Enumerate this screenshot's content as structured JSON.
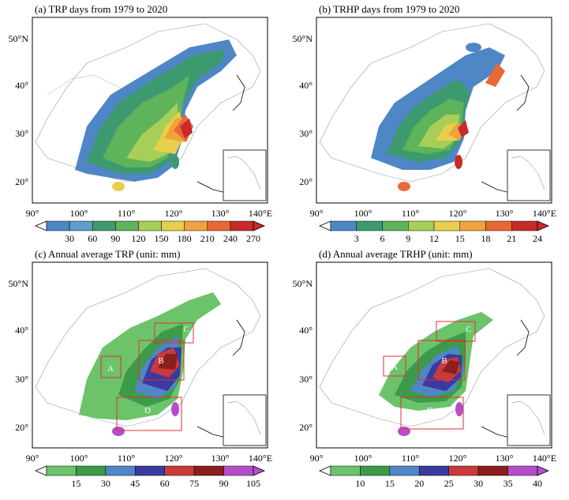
{
  "panels": [
    {
      "title": "(a) TRP days from 1979 to 2020",
      "colorbar": {
        "ticks": [
          "30",
          "60",
          "90",
          "120",
          "150",
          "180",
          "210",
          "240",
          "270"
        ],
        "unit": ""
      },
      "colors": [
        "#4f86c6",
        "#5d9fc9",
        "#3d9a6e",
        "#5fb35a",
        "#a7cf57",
        "#e8cf4a",
        "#f0a33d",
        "#e86935",
        "#c92a2a"
      ],
      "boxes": false
    },
    {
      "title": "(b) TRHP days from 1979 to 2020",
      "colorbar": {
        "ticks": [
          "3",
          "6",
          "9",
          "12",
          "15",
          "18",
          "21",
          "24"
        ],
        "unit": ""
      },
      "colors": [
        "#4f86c6",
        "#3d9a6e",
        "#5fb35a",
        "#a7cf57",
        "#e8cf4a",
        "#f0a33d",
        "#e86935",
        "#c92a2a"
      ],
      "boxes": false
    },
    {
      "title": "(c) Annual average TRP (unit: mm)",
      "colorbar": {
        "ticks": [
          "15",
          "30",
          "45",
          "60",
          "75",
          "90",
          "105"
        ],
        "unit": ""
      },
      "colors": [
        "#6cc36a",
        "#3d9a4a",
        "#4f86c6",
        "#3a3aa0",
        "#c93a3a",
        "#8b1e1e",
        "#b54fc9"
      ],
      "boxes": true
    },
    {
      "title": "(d) Annual average TRHP (unit: mm)",
      "colorbar": {
        "ticks": [
          "10",
          "15",
          "20",
          "25",
          "30",
          "35",
          "40"
        ],
        "unit": ""
      },
      "colors": [
        "#6cc36a",
        "#3d9a4a",
        "#4f86c6",
        "#3a3aa0",
        "#c93a3a",
        "#8b1e1e",
        "#b54fc9"
      ],
      "boxes": true
    }
  ],
  "axes": {
    "lat_labels": [
      "50°N",
      "40°",
      "30°",
      "20°"
    ],
    "lon_labels_a": [
      "90°",
      "100°",
      "110°",
      "120°",
      "130°",
      "140°E"
    ],
    "lon_labels_c": [
      "90°",
      "100°",
      "110°",
      "120°",
      "130°",
      "140°E"
    ]
  },
  "regions": [
    "A",
    "B",
    "C",
    "D"
  ]
}
